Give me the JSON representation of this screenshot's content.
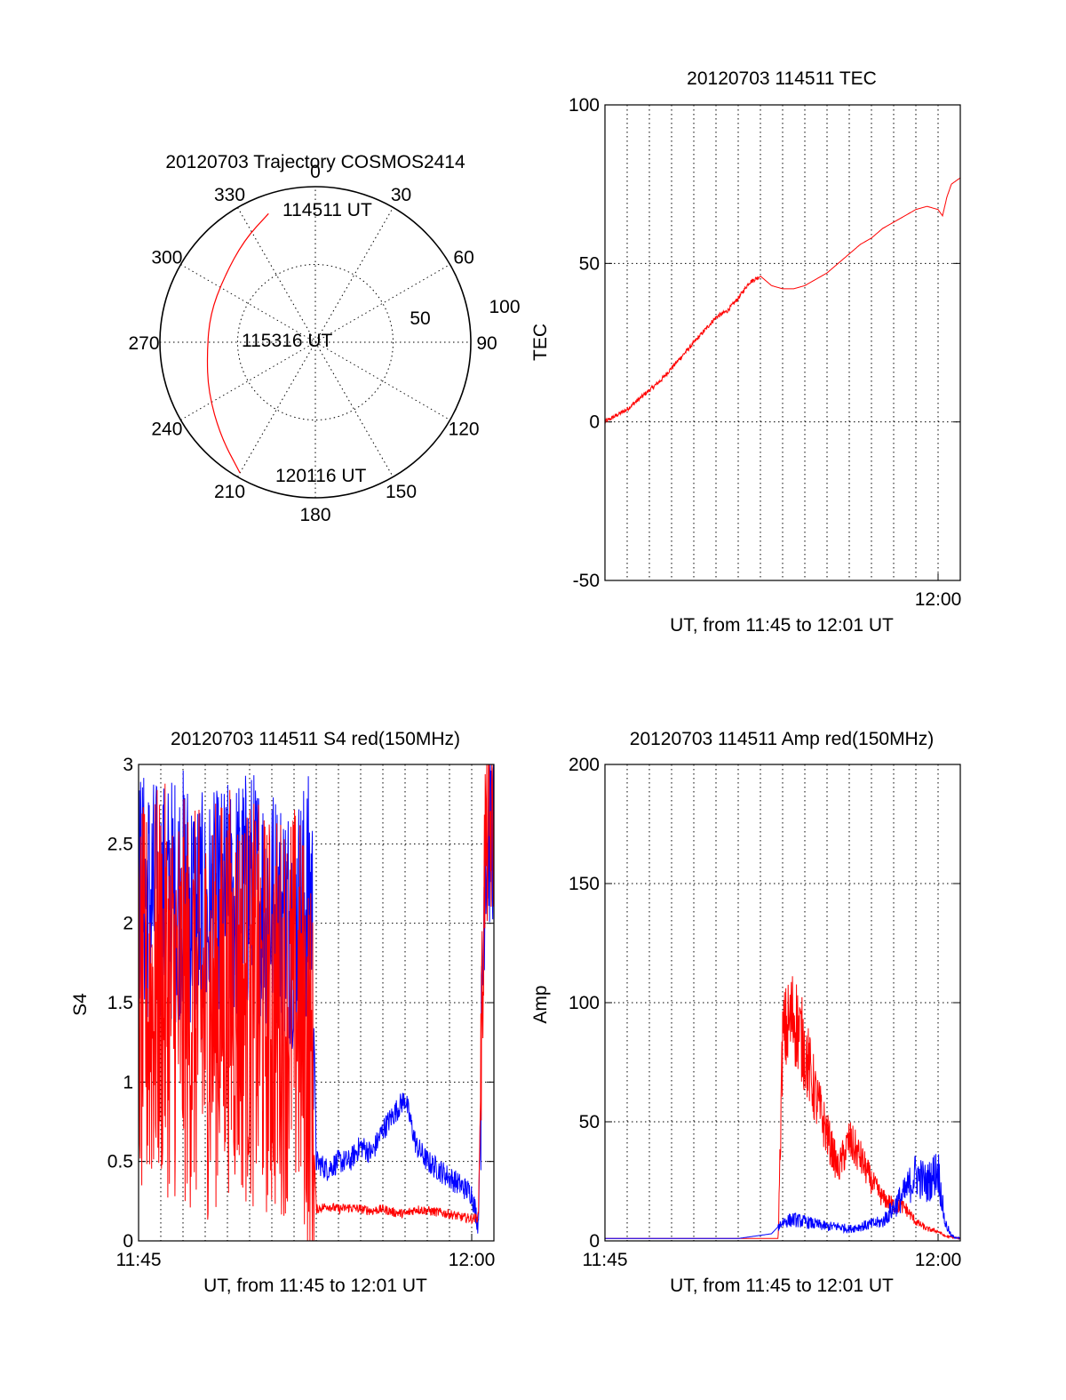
{
  "chart_data": [
    {
      "type": "polar",
      "title": "20120703 Trajectory COSMOS2414",
      "angle_labels": [
        "0",
        "30",
        "60",
        "90",
        "120",
        "150",
        "180",
        "210",
        "240",
        "270",
        "300",
        "330"
      ],
      "radius_labels": [
        "50",
        "100"
      ],
      "trajectory": {
        "color": "#ff0000",
        "points": [
          {
            "az": 340,
            "r": 88
          },
          {
            "az": 325,
            "r": 80
          },
          {
            "az": 305,
            "r": 72
          },
          {
            "az": 285,
            "r": 70
          },
          {
            "az": 265,
            "r": 70
          },
          {
            "az": 245,
            "r": 76
          },
          {
            "az": 225,
            "r": 86
          },
          {
            "az": 210,
            "r": 97
          }
        ],
        "labels": [
          "114511 UT",
          "115316 UT",
          "120116 UT"
        ]
      }
    },
    {
      "type": "line",
      "title": "20120703 114511 TEC",
      "xlabel": "UT, from 11:45 to 12:01 UT",
      "ylabel": "TEC",
      "ylim": [
        -50,
        100
      ],
      "yticks": [
        "-50",
        "0",
        "50",
        "100"
      ],
      "xticks": [
        "12:00"
      ],
      "grid": true,
      "series": [
        {
          "color": "#ff0000",
          "x": [
            0,
            0.5,
            1,
            1.5,
            2,
            2.5,
            3,
            3.5,
            4,
            4.5,
            5,
            5.5,
            6,
            6.5,
            7,
            7.5,
            8,
            8.5,
            9,
            9.5,
            10,
            10.5,
            11,
            11.5,
            12,
            12.5,
            13,
            13.5,
            14,
            14.5,
            15,
            15.2,
            15.4,
            15.6,
            15.8,
            16
          ],
          "values": [
            0,
            2,
            4,
            7,
            10,
            13,
            17,
            21,
            25,
            29,
            33,
            35,
            39,
            44,
            46,
            43,
            42,
            42,
            43,
            45,
            47,
            50,
            53,
            56,
            58,
            61,
            63,
            65,
            67,
            68,
            67,
            65,
            71,
            75,
            76,
            77
          ]
        }
      ]
    },
    {
      "type": "line",
      "title": "20120703 114511 S4 red(150MHz)",
      "xlabel": "UT, from 11:45 to 12:01 UT",
      "ylabel": "S4",
      "ylim": [
        0,
        3
      ],
      "yticks": [
        "0",
        "0.5",
        "1",
        "1.5",
        "2",
        "2.5",
        "3"
      ],
      "xticks": [
        "11:45",
        "12:00"
      ],
      "grid": true,
      "series": [
        {
          "color": "#0000ff",
          "x": [
            0,
            1,
            2,
            3,
            4,
            5,
            6,
            7,
            7.8,
            8,
            8.5,
            9,
            9.5,
            10,
            10.5,
            11,
            11.5,
            12,
            12.5,
            13,
            13.5,
            14,
            14.5,
            15,
            15.3,
            15.6,
            16
          ],
          "values": [
            2.2,
            2.1,
            2.2,
            2.0,
            2.1,
            2.2,
            2.1,
            2.0,
            2.2,
            0.5,
            0.45,
            0.5,
            0.5,
            0.6,
            0.55,
            0.7,
            0.8,
            0.9,
            0.6,
            0.5,
            0.45,
            0.4,
            0.35,
            0.3,
            0.1,
            2.5,
            2.6
          ]
        },
        {
          "color": "#ff0000",
          "x": [
            0,
            1,
            2,
            3,
            4,
            5,
            6,
            7,
            7.5,
            7.8,
            8,
            8.5,
            9,
            9.5,
            10,
            10.5,
            11,
            11.5,
            12,
            12.5,
            13,
            13.5,
            14,
            14.5,
            15,
            15.3,
            15.6,
            16
          ],
          "values": [
            1.4,
            1.6,
            1.5,
            1.4,
            1.6,
            1.5,
            1.4,
            1.5,
            1.3,
            1.0,
            0.2,
            0.22,
            0.2,
            0.21,
            0.2,
            0.19,
            0.2,
            0.18,
            0.17,
            0.2,
            0.19,
            0.18,
            0.17,
            0.15,
            0.14,
            0.15,
            2.5,
            2.6
          ]
        }
      ]
    },
    {
      "type": "line",
      "title": "20120703 114511 Amp red(150MHz)",
      "xlabel": "UT, from 11:45 to 12:01 UT",
      "ylabel": "Amp",
      "ylim": [
        0,
        200
      ],
      "yticks": [
        "0",
        "50",
        "100",
        "150",
        "200"
      ],
      "xticks": [
        "11:45",
        "12:00"
      ],
      "grid": true,
      "series": [
        {
          "color": "#ff0000",
          "x": [
            0,
            2,
            4,
            6,
            7.8,
            8,
            8.5,
            9,
            9.5,
            10,
            10.5,
            11,
            11.5,
            12,
            12.5,
            13,
            13.5,
            14,
            14.5,
            15,
            15.3,
            16
          ],
          "values": [
            1,
            1,
            1,
            1,
            1,
            85,
            95,
            80,
            60,
            45,
            30,
            42,
            35,
            25,
            18,
            15,
            14,
            8,
            5,
            4,
            2,
            1
          ]
        },
        {
          "color": "#0000ff",
          "x": [
            0,
            2,
            4,
            6,
            7.5,
            8,
            8.5,
            9,
            9.5,
            10,
            10.5,
            11,
            11.5,
            12,
            12.5,
            13,
            13.5,
            14,
            14.5,
            15,
            15.3,
            15.6,
            16
          ],
          "values": [
            1,
            1,
            1,
            1,
            3,
            8,
            9,
            8,
            7,
            6,
            6,
            5,
            6,
            7,
            8,
            14,
            20,
            28,
            24,
            30,
            8,
            2,
            1
          ]
        }
      ]
    }
  ]
}
